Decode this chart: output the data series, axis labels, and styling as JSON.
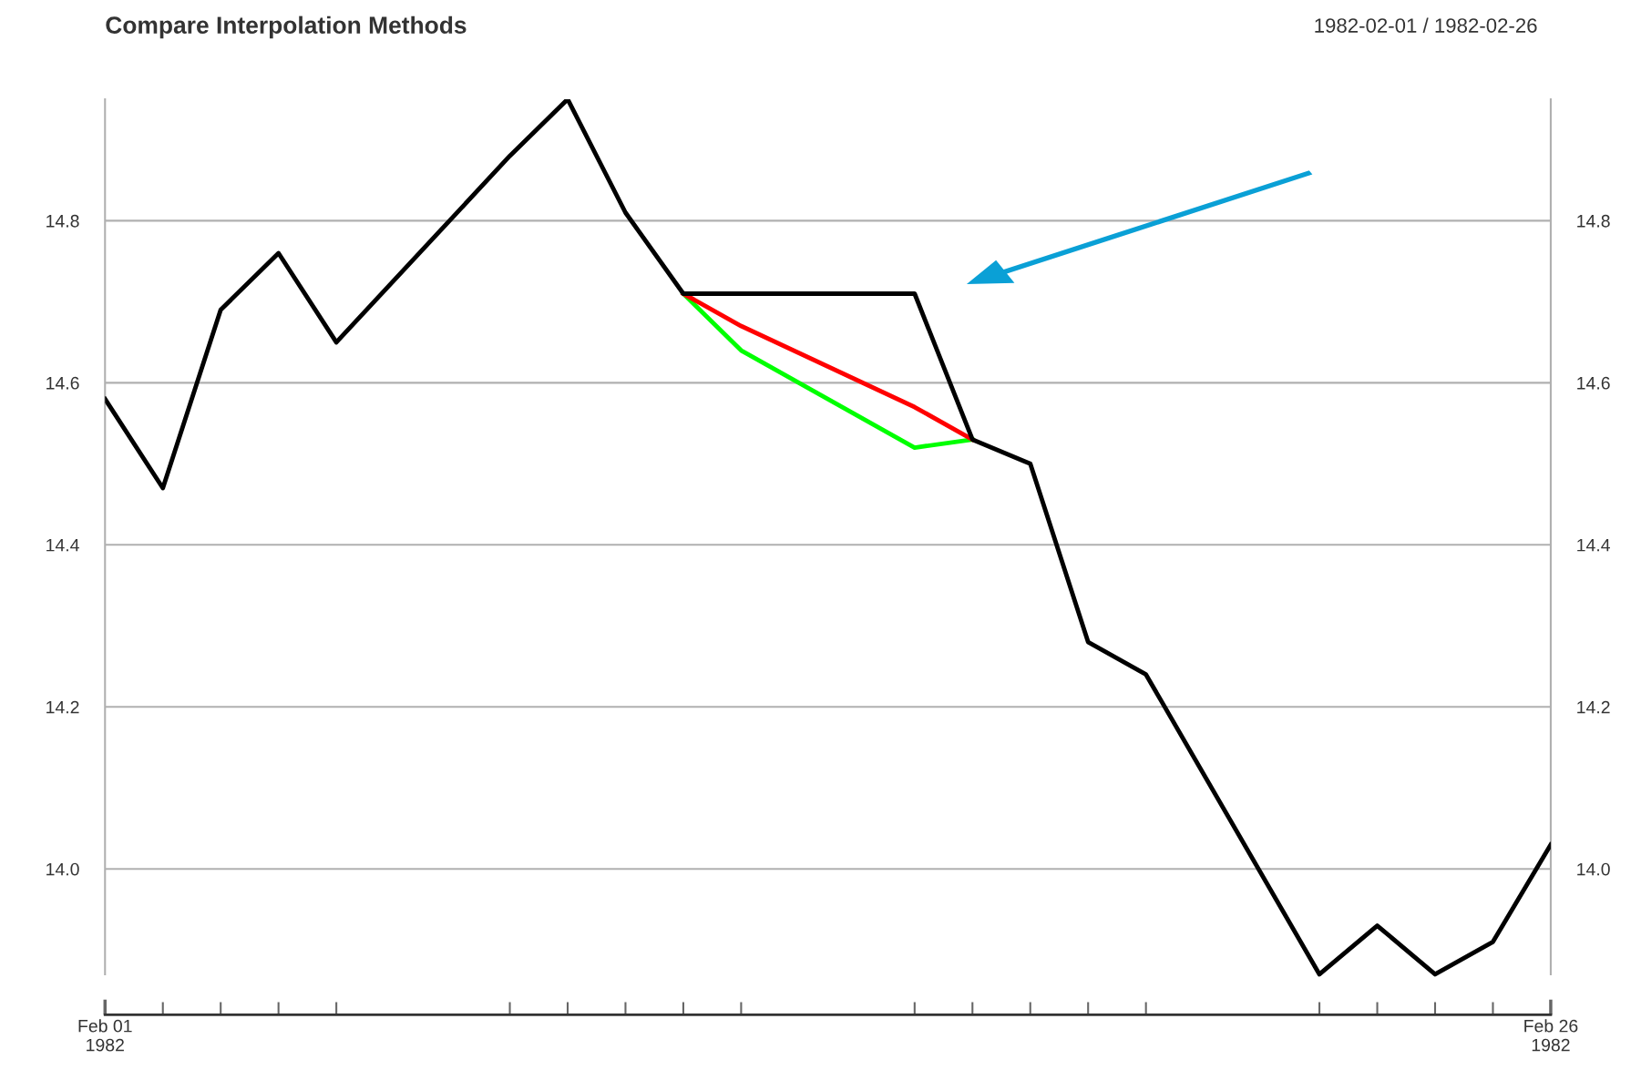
{
  "chart_data": {
    "type": "line",
    "title": "Compare Interpolation Methods",
    "annotations": [
      "1982-02-01 / 1982-02-26"
    ],
    "series": [
      {
        "color": "#00ff00",
        "x": [
          "1982-02-11",
          "1982-02-12",
          "1982-02-15",
          "1982-02-16"
        ],
        "values": [
          14.71,
          14.64,
          14.52,
          14.53
        ]
      },
      {
        "color": "#ff0000",
        "x": [
          "1982-02-11",
          "1982-02-12",
          "1982-02-15",
          "1982-02-16"
        ],
        "values": [
          14.71,
          14.67,
          14.57,
          14.53
        ]
      },
      {
        "color": "#000000",
        "x": [
          "1982-02-01",
          "1982-02-02",
          "1982-02-03",
          "1982-02-04",
          "1982-02-05",
          "1982-02-08",
          "1982-02-09",
          "1982-02-10",
          "1982-02-11",
          "1982-02-12",
          "1982-02-15",
          "1982-02-16",
          "1982-02-17",
          "1982-02-18",
          "1982-02-19",
          "1982-02-22",
          "1982-02-23",
          "1982-02-24",
          "1982-02-25",
          "1982-02-26"
        ],
        "values": [
          14.58,
          14.47,
          14.69,
          14.76,
          14.65,
          14.88,
          14.95,
          14.81,
          14.71,
          14.71,
          14.71,
          14.53,
          14.5,
          14.28,
          14.24,
          13.87,
          13.93,
          13.87,
          13.91,
          14.03
        ]
      }
    ],
    "xlim": [
      "1982-02-01",
      "1982-02-26"
    ],
    "xticks": [
      {
        "value": "1982-02-01",
        "label": "Feb 01\n1982"
      },
      {
        "value": "1982-02-02",
        "label": null
      },
      {
        "value": "1982-02-03",
        "label": null
      },
      {
        "value": "1982-02-04",
        "label": null
      },
      {
        "value": "1982-02-05",
        "label": null
      },
      {
        "value": "1982-02-08",
        "label": null
      },
      {
        "value": "1982-02-09",
        "label": null
      },
      {
        "value": "1982-02-10",
        "label": null
      },
      {
        "value": "1982-02-11",
        "label": null
      },
      {
        "value": "1982-02-12",
        "label": null
      },
      {
        "value": "1982-02-15",
        "label": null
      },
      {
        "value": "1982-02-16",
        "label": null
      },
      {
        "value": "1982-02-17",
        "label": null
      },
      {
        "value": "1982-02-18",
        "label": null
      },
      {
        "value": "1982-02-19",
        "label": null
      },
      {
        "value": "1982-02-22",
        "label": null
      },
      {
        "value": "1982-02-23",
        "label": null
      },
      {
        "value": "1982-02-24",
        "label": null
      },
      {
        "value": "1982-02-25",
        "label": null
      },
      {
        "value": "1982-02-26",
        "label": "Feb 26\n1982"
      }
    ],
    "ylim": [
      13.82,
      14.95
    ],
    "yticks": [
      {
        "value": 14.0,
        "label": "14.0"
      },
      14.2,
      14.4,
      14.6,
      14.8
    ],
    "y2lim": [
      13.82,
      14.95
    ],
    "y2ticks": [
      {
        "value": 14.0,
        "label": "14.0"
      },
      14.2,
      14.4,
      14.6,
      14.8
    ],
    "grid": "y",
    "marker": "none",
    "line_style": "solid"
  }
}
